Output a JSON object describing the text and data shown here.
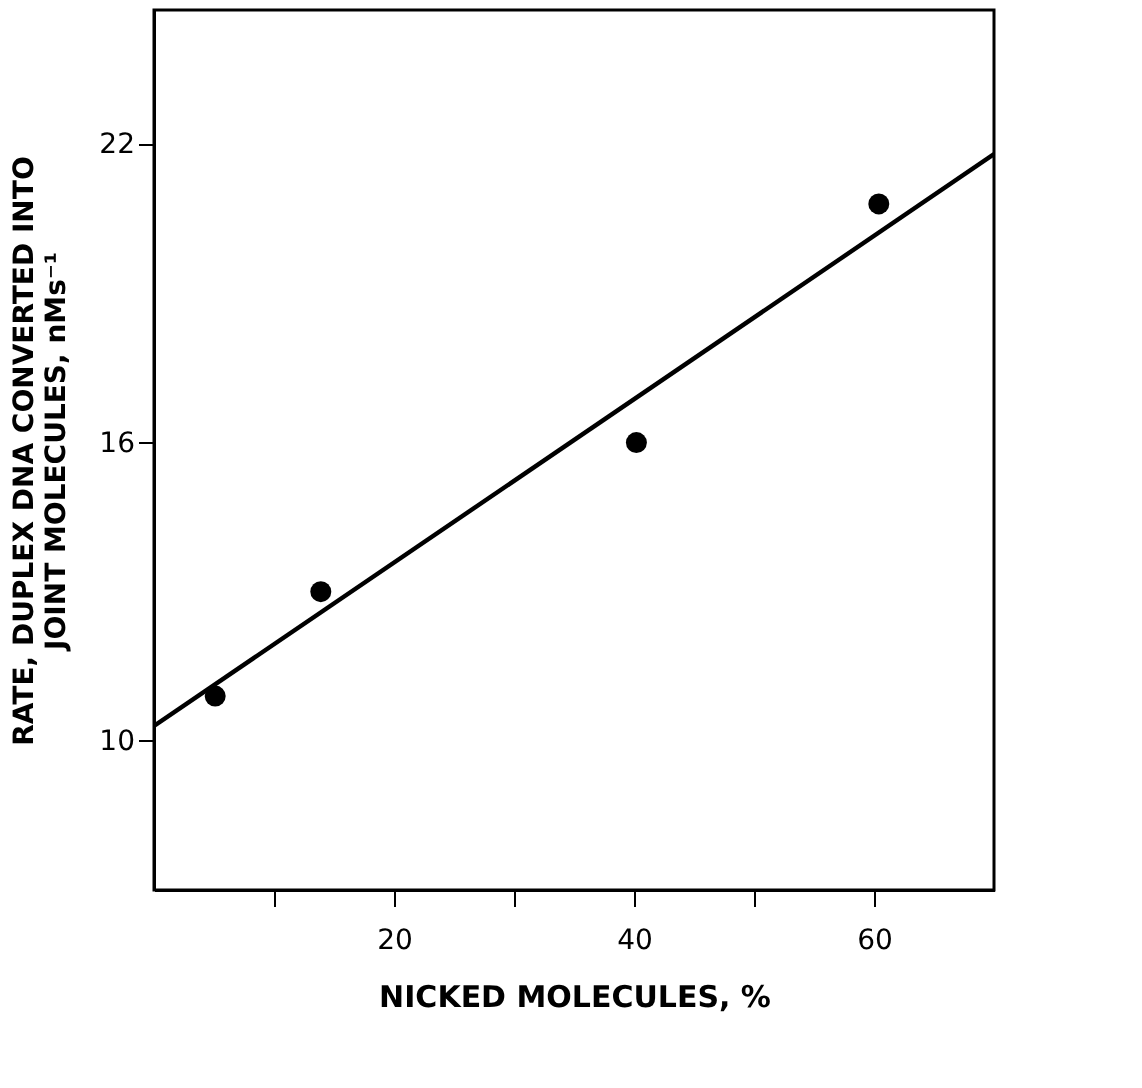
{
  "chart_data": {
    "type": "scatter",
    "xlabel": "NICKED MOLECULES, %",
    "ylabel": "RATE, DUPLEX DNA CONVERTED INTO\nJOINT MOLECULES, nMs⁻¹",
    "xlim": [
      0,
      70
    ],
    "ylim": [
      7,
      24.7
    ],
    "xticks": [
      {
        "value": 10,
        "label": null
      },
      20,
      {
        "value": 30,
        "label": null
      },
      40,
      {
        "value": 50,
        "label": null
      },
      60
    ],
    "yticks": [
      10,
      16,
      22
    ],
    "grid": false,
    "marker": "circle",
    "series": [
      {
        "color": "#000000",
        "x": [
          5.1,
          13.9,
          40.2,
          60.4
        ],
        "values": [
          10.9,
          13.0,
          16.0,
          20.8
        ]
      },
      {
        "type": "line",
        "color": "#000000",
        "line_style": "solid",
        "marker": "none",
        "x": [
          0,
          70
        ],
        "values": [
          10.3,
          21.8
        ]
      }
    ]
  }
}
